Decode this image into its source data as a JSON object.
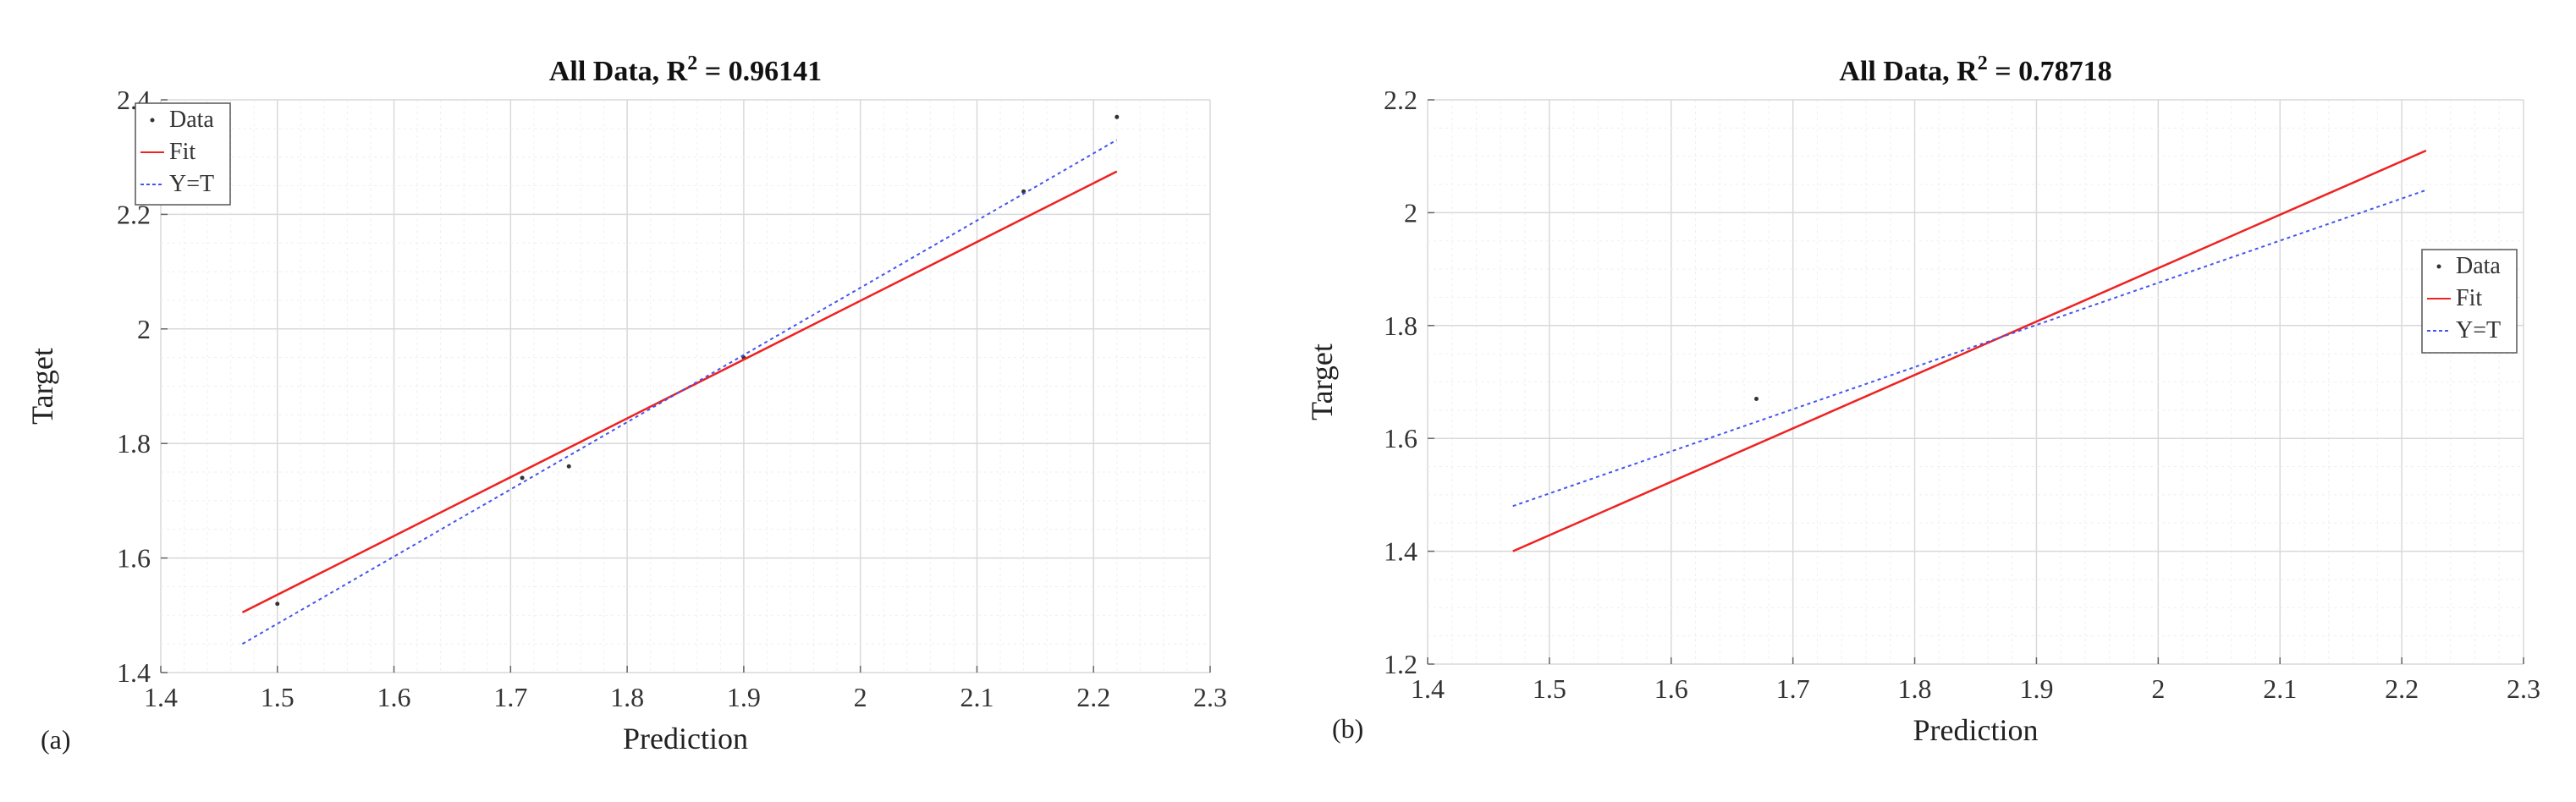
{
  "chart_data": [
    {
      "type": "line",
      "panel_label": "(a)",
      "title_main": "All Data, R",
      "title_sup": "2",
      "title_value": " = 0.96141",
      "xlabel": "Prediction",
      "ylabel": "Target",
      "xlim": [
        1.4,
        2.3
      ],
      "ylim": [
        1.4,
        2.4
      ],
      "xticks": [
        1.4,
        1.5,
        1.6,
        1.7,
        1.8,
        1.9,
        2,
        2.1,
        2.2,
        2.3
      ],
      "yticks": [
        1.4,
        1.6,
        1.8,
        2,
        2.2,
        2.4
      ],
      "grid": true,
      "legend_position": "top-left",
      "legend": [
        "Data",
        "Fit",
        "Y=T"
      ],
      "series": [
        {
          "name": "Data",
          "kind": "scatter",
          "x": [
            1.5,
            1.71,
            1.75,
            1.9,
            2.14,
            2.22
          ],
          "y": [
            1.52,
            1.74,
            1.76,
            1.95,
            2.24,
            2.37
          ]
        },
        {
          "name": "Fit",
          "kind": "line",
          "x": [
            1.47,
            2.22
          ],
          "y": [
            1.505,
            2.275
          ]
        },
        {
          "name": "Y=T",
          "kind": "line",
          "x": [
            1.47,
            2.22
          ],
          "y": [
            1.45,
            2.33
          ]
        }
      ],
      "colors": {
        "Data": "#333333",
        "Fit": "#ee2222",
        "Y=T": "#4455ee"
      }
    },
    {
      "type": "line",
      "panel_label": "(b)",
      "title_main": "All Data, R",
      "title_sup": "2",
      "title_value": " = 0.78718",
      "xlabel": "Prediction",
      "ylabel": "Target",
      "xlim": [
        1.4,
        2.3
      ],
      "ylim": [
        1.2,
        2.2
      ],
      "xticks": [
        1.4,
        1.5,
        1.6,
        1.7,
        1.8,
        1.9,
        2,
        2.1,
        2.2,
        2.3
      ],
      "yticks": [
        1.2,
        1.4,
        1.6,
        1.8,
        2,
        2.2
      ],
      "grid": true,
      "legend_position": "right",
      "legend": [
        "Data",
        "Fit",
        "Y=T"
      ],
      "series": [
        {
          "name": "Data",
          "kind": "scatter",
          "x": [
            1.67
          ],
          "y": [
            1.67
          ]
        },
        {
          "name": "Fit",
          "kind": "line",
          "x": [
            1.47,
            2.22
          ],
          "y": [
            1.4,
            2.11
          ]
        },
        {
          "name": "Y=T",
          "kind": "line",
          "x": [
            1.47,
            2.22
          ],
          "y": [
            1.48,
            2.04
          ]
        }
      ],
      "colors": {
        "Data": "#333333",
        "Fit": "#ee2222",
        "Y=T": "#4455ee"
      }
    }
  ]
}
